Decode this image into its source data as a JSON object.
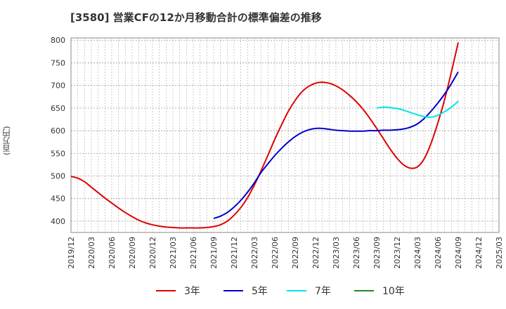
{
  "title": "[3580]  営業CFの12か月移動合計の標準偏差の推移",
  "chart_data": {
    "type": "line",
    "title": "[3580]  営業CFの12か月移動合計の標準偏差の推移",
    "xlabel": "",
    "ylabel": "(百万円)",
    "ylim": [
      375,
      805
    ],
    "yticks": [
      400,
      450,
      500,
      550,
      600,
      650,
      700,
      750,
      800
    ],
    "xlim": [
      "2019-12",
      "2025-03"
    ],
    "xticks": [
      "2019/12",
      "2020/03",
      "2020/06",
      "2020/09",
      "2020/12",
      "2021/03",
      "2021/06",
      "2021/09",
      "2021/12",
      "2022/03",
      "2022/06",
      "2022/09",
      "2022/12",
      "2023/03",
      "2023/06",
      "2023/09",
      "2023/12",
      "2024/03",
      "2024/06",
      "2024/09",
      "2024/12",
      "2025/03"
    ],
    "grid": true,
    "legend_position": "bottom",
    "series": [
      {
        "name": "3年",
        "color": "#dd0000",
        "points": [
          [
            "2019-12",
            499
          ],
          [
            "2020-01",
            495
          ],
          [
            "2020-02",
            487
          ],
          [
            "2020-03",
            475
          ],
          [
            "2020-04",
            463
          ],
          [
            "2020-05",
            451
          ],
          [
            "2020-06",
            440
          ],
          [
            "2020-07",
            429
          ],
          [
            "2020-08",
            419
          ],
          [
            "2020-09",
            410
          ],
          [
            "2020-10",
            402
          ],
          [
            "2020-11",
            396
          ],
          [
            "2020-12",
            392
          ],
          [
            "2021-01",
            389
          ],
          [
            "2021-02",
            387
          ],
          [
            "2021-03",
            386
          ],
          [
            "2021-04",
            385
          ],
          [
            "2021-05",
            385
          ],
          [
            "2021-06",
            385
          ],
          [
            "2021-07",
            385
          ],
          [
            "2021-08",
            386
          ],
          [
            "2021-09",
            388
          ],
          [
            "2021-10",
            392
          ],
          [
            "2021-11",
            400
          ],
          [
            "2021-12",
            413
          ],
          [
            "2022-01",
            430
          ],
          [
            "2022-02",
            452
          ],
          [
            "2022-03",
            480
          ],
          [
            "2022-04",
            512
          ],
          [
            "2022-05",
            546
          ],
          [
            "2022-06",
            581
          ],
          [
            "2022-07",
            613
          ],
          [
            "2022-08",
            643
          ],
          [
            "2022-09",
            667
          ],
          [
            "2022-10",
            686
          ],
          [
            "2022-11",
            698
          ],
          [
            "2022-12",
            705
          ],
          [
            "2023-01",
            707
          ],
          [
            "2023-02",
            705
          ],
          [
            "2023-03",
            699
          ],
          [
            "2023-04",
            690
          ],
          [
            "2023-05",
            678
          ],
          [
            "2023-06",
            664
          ],
          [
            "2023-07",
            647
          ],
          [
            "2023-08",
            627
          ],
          [
            "2023-09",
            605
          ],
          [
            "2023-10",
            582
          ],
          [
            "2023-11",
            559
          ],
          [
            "2023-12",
            539
          ],
          [
            "2024-01",
            524
          ],
          [
            "2024-02",
            517
          ],
          [
            "2024-03",
            520
          ],
          [
            "2024-04",
            538
          ],
          [
            "2024-05",
            572
          ],
          [
            "2024-06",
            617
          ],
          [
            "2024-07",
            669
          ],
          [
            "2024-08",
            730
          ],
          [
            "2024-09",
            795
          ]
        ]
      },
      {
        "name": "5年",
        "color": "#0000cc",
        "points": [
          [
            "2021-09",
            406
          ],
          [
            "2021-10",
            411
          ],
          [
            "2021-11",
            419
          ],
          [
            "2021-12",
            431
          ],
          [
            "2022-01",
            446
          ],
          [
            "2022-02",
            464
          ],
          [
            "2022-03",
            485
          ],
          [
            "2022-04",
            508
          ],
          [
            "2022-05",
            527
          ],
          [
            "2022-06",
            545
          ],
          [
            "2022-07",
            561
          ],
          [
            "2022-08",
            575
          ],
          [
            "2022-09",
            587
          ],
          [
            "2022-10",
            596
          ],
          [
            "2022-11",
            602
          ],
          [
            "2022-12",
            605
          ],
          [
            "2023-01",
            605
          ],
          [
            "2023-02",
            603
          ],
          [
            "2023-03",
            601
          ],
          [
            "2023-04",
            600
          ],
          [
            "2023-05",
            599
          ],
          [
            "2023-06",
            599
          ],
          [
            "2023-07",
            599
          ],
          [
            "2023-08",
            600
          ],
          [
            "2023-09",
            600
          ],
          [
            "2023-10",
            601
          ],
          [
            "2023-11",
            601
          ],
          [
            "2023-12",
            602
          ],
          [
            "2024-01",
            604
          ],
          [
            "2024-02",
            608
          ],
          [
            "2024-03",
            615
          ],
          [
            "2024-04",
            627
          ],
          [
            "2024-05",
            643
          ],
          [
            "2024-06",
            661
          ],
          [
            "2024-07",
            681
          ],
          [
            "2024-08",
            704
          ],
          [
            "2024-09",
            730
          ]
        ]
      },
      {
        "name": "7年",
        "color": "#00e5e5",
        "points": [
          [
            "2023-09",
            650
          ],
          [
            "2023-10",
            652
          ],
          [
            "2023-11",
            651
          ],
          [
            "2023-12",
            649
          ],
          [
            "2024-01",
            645
          ],
          [
            "2024-02",
            640
          ],
          [
            "2024-03",
            635
          ],
          [
            "2024-04",
            631
          ],
          [
            "2024-05",
            630
          ],
          [
            "2024-06",
            634
          ],
          [
            "2024-07",
            642
          ],
          [
            "2024-08",
            652
          ],
          [
            "2024-09",
            665
          ]
        ]
      },
      {
        "name": "10年",
        "color": "#228822",
        "points": []
      }
    ]
  }
}
